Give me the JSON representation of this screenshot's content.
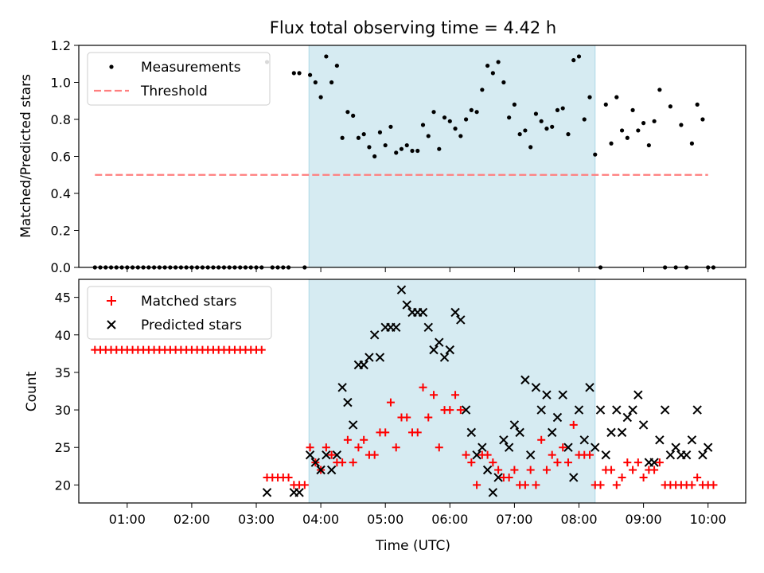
{
  "title": "Flux total observing time = 4.42 h",
  "colors": {
    "shade": "#add8e6",
    "measurement": "#000000",
    "threshold": "#ff7f7f",
    "matched": "#ff0000",
    "predicted": "#000000"
  },
  "chart_data": [
    {
      "type": "scatter",
      "panel": "top",
      "ylabel": "Matched/Predicted stars",
      "xlabel": "",
      "xlim": [
        "00:15",
        "10:35"
      ],
      "ylim": [
        0,
        1.2
      ],
      "yticks": [
        "0.0",
        "0.2",
        "0.4",
        "0.6",
        "0.8",
        "1.0",
        "1.2"
      ],
      "shaded_interval": [
        "03:49",
        "08:15"
      ],
      "legend": {
        "placement": "top-left",
        "entries": [
          "Measurements",
          "Threshold"
        ]
      },
      "threshold": {
        "name": "Threshold",
        "value": 0.5,
        "x": [
          "00:30",
          "10:00"
        ]
      },
      "series": [
        {
          "name": "Measurements",
          "x": [
            "00:30",
            "00:35",
            "00:40",
            "00:45",
            "00:50",
            "00:55",
            "01:00",
            "01:05",
            "01:10",
            "01:15",
            "01:20",
            "01:25",
            "01:30",
            "01:35",
            "01:40",
            "01:45",
            "01:50",
            "01:55",
            "02:00",
            "02:05",
            "02:10",
            "02:15",
            "02:20",
            "02:25",
            "02:30",
            "02:35",
            "02:40",
            "02:45",
            "02:50",
            "02:55",
            "03:00",
            "03:05",
            "03:10",
            "03:15",
            "03:20",
            "03:25",
            "03:30",
            "03:35",
            "03:40",
            "03:45",
            "03:50",
            "03:55",
            "04:00",
            "04:05",
            "04:10",
            "04:15",
            "04:20",
            "04:25",
            "04:30",
            "04:35",
            "04:40",
            "04:45",
            "04:50",
            "04:55",
            "05:00",
            "05:05",
            "05:10",
            "05:15",
            "05:20",
            "05:25",
            "05:30",
            "05:35",
            "05:40",
            "05:45",
            "05:50",
            "05:55",
            "06:00",
            "06:05",
            "06:10",
            "06:15",
            "06:20",
            "06:25",
            "06:30",
            "06:35",
            "06:40",
            "06:45",
            "06:50",
            "06:55",
            "07:00",
            "07:05",
            "07:10",
            "07:15",
            "07:20",
            "07:25",
            "07:30",
            "07:35",
            "07:40",
            "07:45",
            "07:50",
            "07:55",
            "08:00",
            "08:05",
            "08:10",
            "08:15",
            "08:20",
            "08:25",
            "08:30",
            "08:35",
            "08:40",
            "08:45",
            "08:50",
            "08:55",
            "09:00",
            "09:05",
            "09:10",
            "09:15",
            "09:20",
            "09:25",
            "09:30",
            "09:35",
            "09:40",
            "09:45",
            "09:50",
            "09:55",
            "10:00",
            "10:05"
          ],
          "y": [
            0,
            0,
            0,
            0,
            0,
            0,
            0,
            0,
            0,
            0,
            0,
            0,
            0,
            0,
            0,
            0,
            0,
            0,
            0,
            0,
            0,
            0,
            0,
            0,
            0,
            0,
            0,
            0,
            0,
            0,
            0,
            0,
            1.11,
            0,
            0,
            0,
            0,
            1.05,
            1.05,
            0,
            1.04,
            1.0,
            0.92,
            1.14,
            1.0,
            1.09,
            0.7,
            0.84,
            0.82,
            0.7,
            0.72,
            0.65,
            0.6,
            0.73,
            0.66,
            0.76,
            0.62,
            0.64,
            0.66,
            0.63,
            0.63,
            0.77,
            0.71,
            0.84,
            0.64,
            0.81,
            0.79,
            0.75,
            0.71,
            0.8,
            0.85,
            0.84,
            0.96,
            1.09,
            1.05,
            1.11,
            1.0,
            0.81,
            0.88,
            0.72,
            0.74,
            0.65,
            0.83,
            0.79,
            0.75,
            0.76,
            0.85,
            0.86,
            0.72,
            1.12,
            1.14,
            0.8,
            0.92,
            0.61,
            0,
            0.88,
            0.67,
            0.92,
            0.74,
            0.7,
            0.85,
            0.74,
            0.78,
            0.66,
            0.79,
            0.96,
            0,
            0.87,
            0,
            0.77,
            0,
            0.67,
            0.88,
            0.8,
            0,
            0
          ]
        }
      ]
    },
    {
      "type": "scatter",
      "panel": "bottom",
      "ylabel": "Count",
      "xlabel": "Time (UTC)",
      "xlim": [
        "00:15",
        "10:35"
      ],
      "ylim": [
        17.6,
        47.4
      ],
      "yticks": [
        "20",
        "25",
        "30",
        "35",
        "40",
        "45"
      ],
      "xticks": [
        "01:00",
        "02:00",
        "03:00",
        "04:00",
        "05:00",
        "06:00",
        "07:00",
        "08:00",
        "09:00",
        "10:00"
      ],
      "shaded_interval": [
        "03:49",
        "08:15"
      ],
      "legend": {
        "placement": "top-left",
        "entries": [
          "Matched stars",
          "Predicted stars"
        ]
      },
      "series": [
        {
          "name": "Matched stars",
          "marker": "+",
          "x": [
            "00:30",
            "00:35",
            "00:40",
            "00:45",
            "00:50",
            "00:55",
            "01:00",
            "01:05",
            "01:10",
            "01:15",
            "01:20",
            "01:25",
            "01:30",
            "01:35",
            "01:40",
            "01:45",
            "01:50",
            "01:55",
            "02:00",
            "02:05",
            "02:10",
            "02:15",
            "02:20",
            "02:25",
            "02:30",
            "02:35",
            "02:40",
            "02:45",
            "02:50",
            "02:55",
            "03:00",
            "03:05",
            "03:10",
            "03:15",
            "03:20",
            "03:25",
            "03:30",
            "03:35",
            "03:40",
            "03:45",
            "03:50",
            "03:55",
            "04:00",
            "04:05",
            "04:10",
            "04:15",
            "04:20",
            "04:25",
            "04:30",
            "04:35",
            "04:40",
            "04:45",
            "04:50",
            "04:55",
            "05:00",
            "05:05",
            "05:10",
            "05:15",
            "05:20",
            "05:25",
            "05:30",
            "05:35",
            "05:40",
            "05:45",
            "05:50",
            "05:55",
            "06:00",
            "06:05",
            "06:10",
            "06:15",
            "06:20",
            "06:25",
            "06:30",
            "06:35",
            "06:40",
            "06:45",
            "06:50",
            "06:55",
            "07:00",
            "07:05",
            "07:10",
            "07:15",
            "07:20",
            "07:25",
            "07:30",
            "07:35",
            "07:40",
            "07:45",
            "07:50",
            "07:55",
            "08:00",
            "08:05",
            "08:10",
            "08:15",
            "08:20",
            "08:25",
            "08:30",
            "08:35",
            "08:40",
            "08:45",
            "08:50",
            "08:55",
            "09:00",
            "09:05",
            "09:10",
            "09:15",
            "09:20",
            "09:25",
            "09:30",
            "09:35",
            "09:40",
            "09:45",
            "09:50",
            "09:55",
            "10:00",
            "10:05"
          ],
          "y": [
            38,
            38,
            38,
            38,
            38,
            38,
            38,
            38,
            38,
            38,
            38,
            38,
            38,
            38,
            38,
            38,
            38,
            38,
            38,
            38,
            38,
            38,
            38,
            38,
            38,
            38,
            38,
            38,
            38,
            38,
            38,
            38,
            21,
            21,
            21,
            21,
            21,
            20,
            20,
            20,
            25,
            23,
            22,
            25,
            24,
            23,
            23,
            26,
            23,
            25,
            26,
            24,
            24,
            27,
            27,
            31,
            25,
            29,
            29,
            27,
            27,
            33,
            29,
            32,
            25,
            30,
            30,
            32,
            30,
            24,
            23,
            20,
            24,
            24,
            23,
            22,
            21,
            21,
            22,
            20,
            20,
            22,
            20,
            26,
            22,
            24,
            23,
            25,
            23,
            28,
            24,
            24,
            24,
            20,
            20,
            22,
            22,
            20,
            21,
            23,
            22,
            23,
            21,
            22,
            22,
            23,
            20,
            20,
            20,
            20,
            20,
            20,
            21,
            20,
            20,
            20
          ],
          "note": ""
        },
        {
          "name": "Predicted stars",
          "marker": "x",
          "x": [
            "03:10",
            "03:35",
            "03:40",
            "03:50",
            "03:55",
            "04:00",
            "04:05",
            "04:10",
            "04:15",
            "04:20",
            "04:25",
            "04:30",
            "04:35",
            "04:40",
            "04:45",
            "04:50",
            "04:55",
            "05:00",
            "05:05",
            "05:10",
            "05:15",
            "05:20",
            "05:25",
            "05:30",
            "05:35",
            "05:40",
            "05:45",
            "05:50",
            "05:55",
            "06:00",
            "06:05",
            "06:10",
            "06:15",
            "06:20",
            "06:25",
            "06:30",
            "06:35",
            "06:40",
            "06:45",
            "06:50",
            "06:55",
            "07:00",
            "07:05",
            "07:10",
            "07:15",
            "07:20",
            "07:25",
            "07:30",
            "07:35",
            "07:40",
            "07:45",
            "07:50",
            "07:55",
            "08:00",
            "08:05",
            "08:10",
            "08:15",
            "08:20",
            "08:25",
            "08:30",
            "08:35",
            "08:40",
            "08:45",
            "08:50",
            "08:55",
            "09:00",
            "09:05",
            "09:10",
            "09:15",
            "09:20",
            "09:25",
            "09:30",
            "09:35",
            "09:40",
            "09:45",
            "09:50",
            "09:55",
            "10:00"
          ],
          "y": [
            19,
            19,
            19,
            24,
            23,
            22,
            24,
            22,
            24,
            33,
            31,
            28,
            36,
            36,
            37,
            40,
            37,
            41,
            41,
            41,
            46,
            44,
            43,
            43,
            43,
            41,
            38,
            39,
            37,
            38,
            43,
            42,
            30,
            27,
            24,
            25,
            22,
            19,
            21,
            26,
            25,
            28,
            27,
            34,
            24,
            33,
            30,
            32,
            27,
            29,
            32,
            25,
            21,
            30,
            26,
            33,
            25,
            30,
            24,
            27,
            30,
            27,
            29,
            30,
            32,
            28,
            23,
            23,
            26,
            30,
            24,
            25,
            24,
            24,
            26,
            30,
            24,
            25
          ]
        }
      ]
    }
  ]
}
